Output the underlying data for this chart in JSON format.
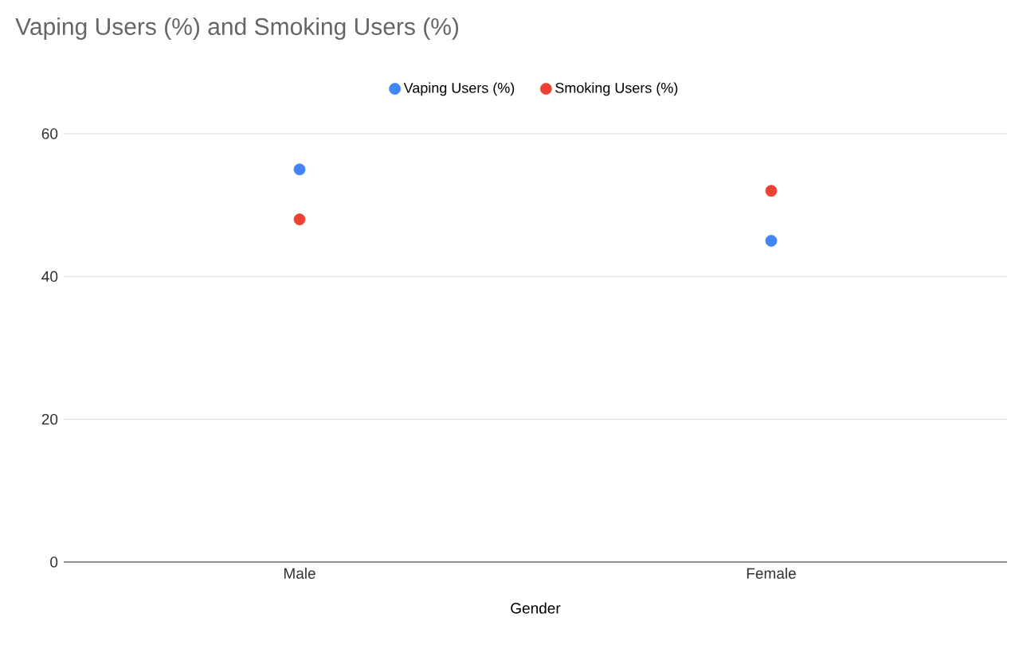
{
  "chart_data": {
    "type": "scatter",
    "title": "Vaping Users (%) and Smoking Users (%)",
    "xlabel": "Gender",
    "categories": [
      "Male",
      "Female"
    ],
    "series": [
      {
        "name": "Vaping Users (%)",
        "color": "#4285f4",
        "values": [
          55,
          45
        ]
      },
      {
        "name": "Smoking Users (%)",
        "color": "#ea4335",
        "values": [
          48,
          52
        ]
      }
    ],
    "ylim": [
      0,
      60
    ],
    "yticks": [
      0,
      20,
      40,
      60
    ],
    "grid": "y",
    "legend": "top",
    "marker": "circle"
  }
}
